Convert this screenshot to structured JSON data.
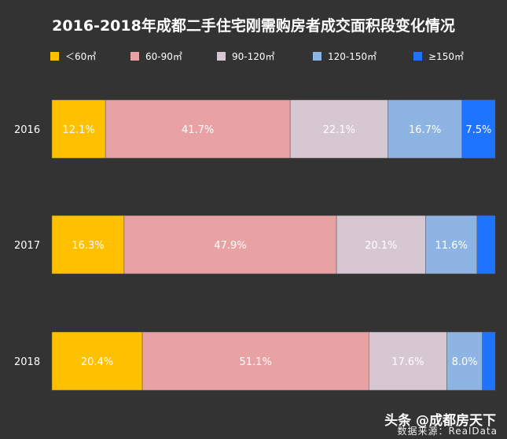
{
  "chart_data": {
    "type": "bar",
    "orientation": "horizontal",
    "stacked": true,
    "normalized": true,
    "title": "2016-2018年成都二手住宅刚需购房者成交面积段变化情况",
    "categories": [
      "2016",
      "2017",
      "2018"
    ],
    "series": [
      {
        "name": "＜60㎡",
        "color": "#ffc000",
        "values": [
          12.1,
          16.3,
          20.4
        ],
        "labels": [
          "12.1%",
          "16.3%",
          "20.4%"
        ]
      },
      {
        "name": "60-90㎡",
        "color": "#e8a2a4",
        "values": [
          41.7,
          47.9,
          51.1
        ],
        "labels": [
          "41.7%",
          "47.9%",
          "51.1%"
        ]
      },
      {
        "name": "90-120㎡",
        "color": "#d7c7d2",
        "values": [
          22.1,
          20.1,
          17.6
        ],
        "labels": [
          "22.1%",
          "20.1%",
          "17.6%"
        ]
      },
      {
        "name": "120-150㎡",
        "color": "#8eb4e3",
        "values": [
          16.7,
          11.6,
          8.0
        ],
        "labels": [
          "16.7%",
          "11.6%",
          "8.0%"
        ]
      },
      {
        "name": "≥150㎡",
        "color": "#1f74ff",
        "values": [
          7.5,
          4.1,
          2.9
        ],
        "labels": [
          "7.5%",
          "",
          ""
        ]
      }
    ],
    "xlim": [
      0,
      100
    ],
    "legend_position": "top",
    "grid": false
  },
  "watermark": "头条 @成都房天下",
  "source": "数据来源：RealData"
}
